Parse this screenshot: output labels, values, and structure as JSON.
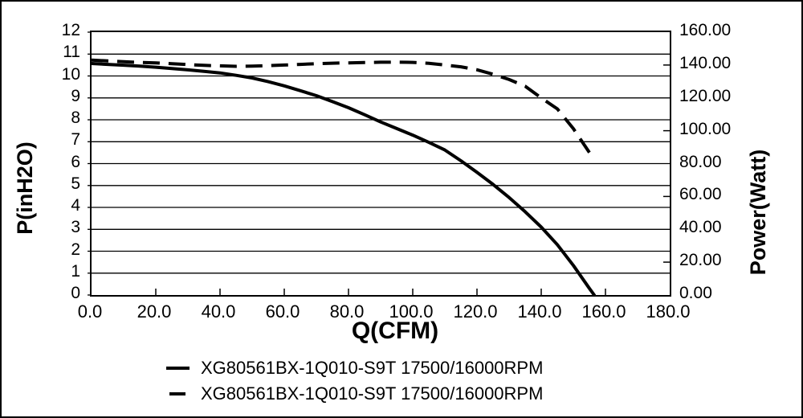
{
  "chart_data": {
    "type": "line",
    "title": "",
    "xlabel": "Q(CFM)",
    "ylabel_left": "P(inH2O)",
    "ylabel_right": "Power(Watt)",
    "x_range": [
      0,
      180
    ],
    "y_left_range": [
      0,
      12
    ],
    "y_right_range": [
      0,
      160
    ],
    "grid": "horizontal gridlines at every 1 inH2O, plot box framed",
    "legend_position": "bottom",
    "x_tick_labels": [
      "0.0",
      "20.0",
      "40.0",
      "60.0",
      "80.0",
      "100.0",
      "120.0",
      "140.0",
      "160.0",
      "180.0"
    ],
    "y_left_tick_labels": [
      "12",
      "11",
      "10",
      "9",
      "8",
      "7",
      "6",
      "5",
      "4",
      "3",
      "2",
      "1",
      "0"
    ],
    "y_right_tick_labels": [
      "160.00",
      "140.00",
      "120.00",
      "100.00",
      "80.00",
      "60.00",
      "40.00",
      "20.00",
      "0.00"
    ],
    "series": [
      {
        "name": "XG80561BX-1Q010-S9T 17500/16000RPM",
        "style": "solid",
        "axis": "left",
        "unit": "inH2O",
        "points": [
          [
            0,
            10.57
          ],
          [
            5,
            10.53
          ],
          [
            10,
            10.49
          ],
          [
            15,
            10.45
          ],
          [
            20,
            10.4
          ],
          [
            25,
            10.34
          ],
          [
            30,
            10.28
          ],
          [
            35,
            10.21
          ],
          [
            40,
            10.14
          ],
          [
            45,
            10.03
          ],
          [
            50,
            9.91
          ],
          [
            55,
            9.74
          ],
          [
            60,
            9.55
          ],
          [
            65,
            9.33
          ],
          [
            70,
            9.1
          ],
          [
            75,
            8.83
          ],
          [
            80,
            8.55
          ],
          [
            85,
            8.23
          ],
          [
            90,
            7.9
          ],
          [
            95,
            7.6
          ],
          [
            100,
            7.3
          ],
          [
            105,
            6.97
          ],
          [
            110,
            6.62
          ],
          [
            115,
            6.13
          ],
          [
            120,
            5.6
          ],
          [
            125,
            5.05
          ],
          [
            130,
            4.45
          ],
          [
            135,
            3.8
          ],
          [
            140,
            3.1
          ],
          [
            145,
            2.3
          ],
          [
            150,
            1.35
          ],
          [
            155,
            0.3
          ],
          [
            156.5,
            0
          ]
        ]
      },
      {
        "name": "XG80561BX-1Q010-S9T 17500/16000RPM",
        "style": "dashed",
        "axis": "right",
        "unit": "Watt",
        "points": [
          [
            0,
            143.0
          ],
          [
            5,
            142.5
          ],
          [
            10,
            142.0
          ],
          [
            15,
            141.6
          ],
          [
            20,
            141.3
          ],
          [
            25,
            140.8
          ],
          [
            30,
            140.3
          ],
          [
            35,
            139.8
          ],
          [
            40,
            139.5
          ],
          [
            45,
            139.2
          ],
          [
            50,
            139.3
          ],
          [
            55,
            139.6
          ],
          [
            60,
            140.0
          ],
          [
            65,
            140.4
          ],
          [
            70,
            140.8
          ],
          [
            75,
            141.1
          ],
          [
            80,
            141.3
          ],
          [
            85,
            141.5
          ],
          [
            90,
            141.7
          ],
          [
            95,
            141.7
          ],
          [
            100,
            141.6
          ],
          [
            105,
            141.0
          ],
          [
            110,
            140.0
          ],
          [
            115,
            138.9
          ],
          [
            120,
            137.1
          ],
          [
            125,
            134.4
          ],
          [
            130,
            131.2
          ],
          [
            135,
            127.1
          ],
          [
            140,
            120.0
          ],
          [
            145,
            113.3
          ],
          [
            150,
            101.3
          ],
          [
            155,
            86.7
          ]
        ]
      }
    ]
  },
  "legend": {
    "items": [
      {
        "label": "XG80561BX-1Q010-S9T 17500/16000RPM",
        "style": "solid"
      },
      {
        "label": "XG80561BX-1Q010-S9T 17500/16000RPM",
        "style": "dashed"
      }
    ]
  },
  "colors": {
    "line": "#000000",
    "background": "#ffffff",
    "border": "#000000",
    "grid": "#000000"
  }
}
